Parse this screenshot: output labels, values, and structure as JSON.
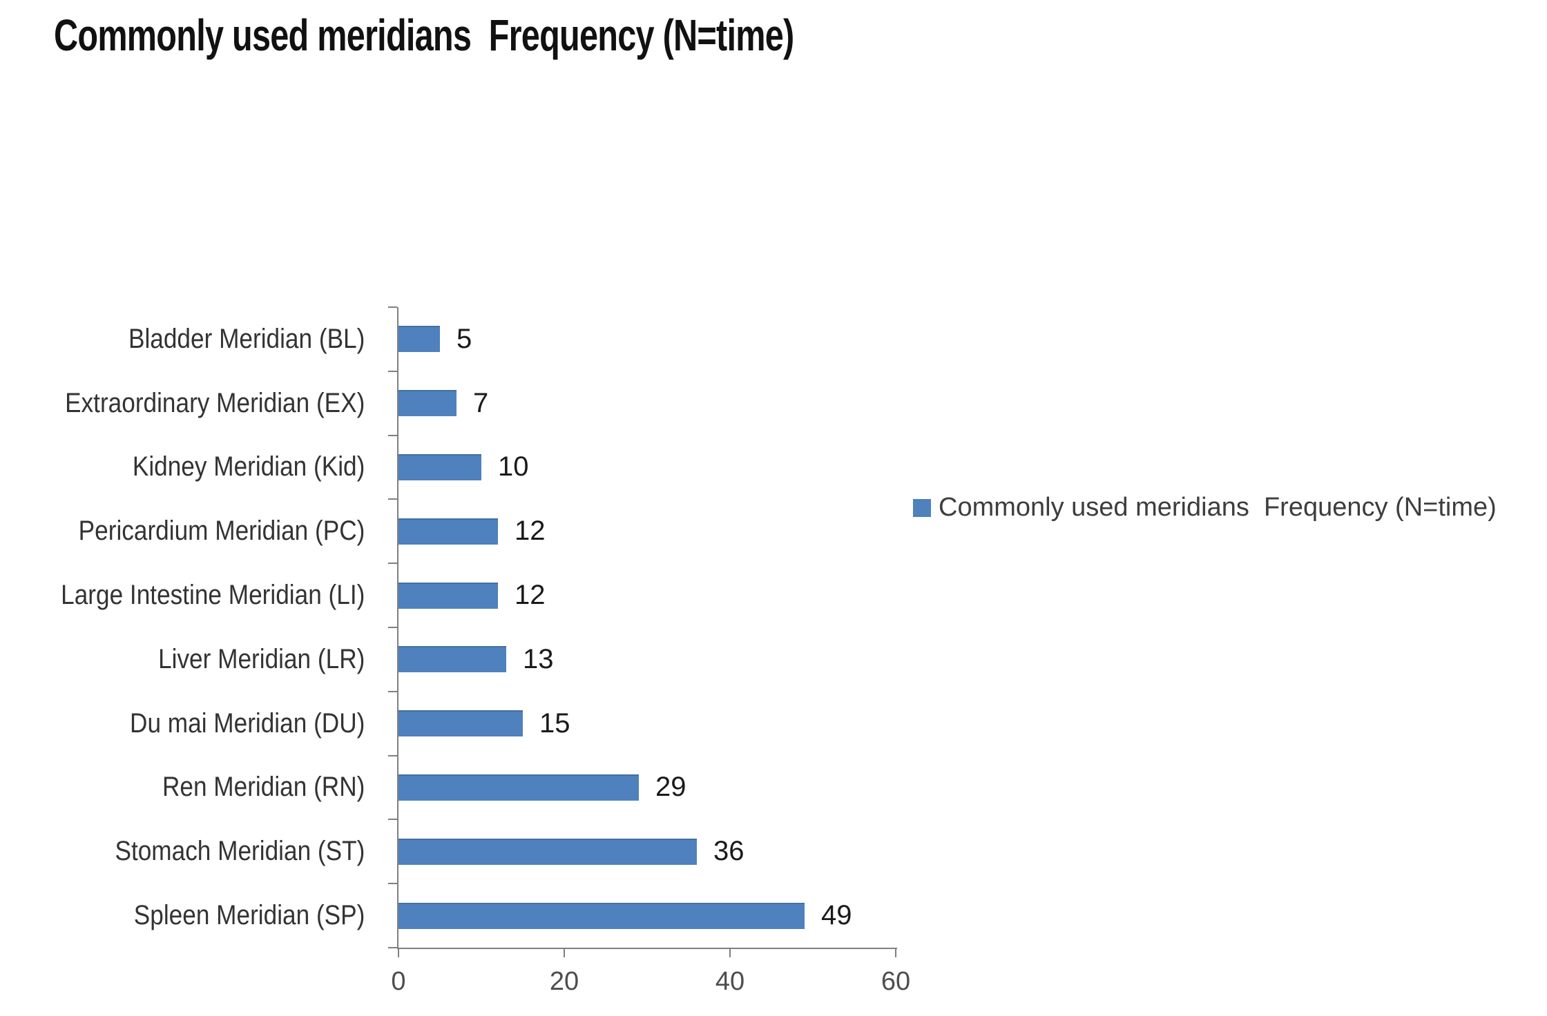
{
  "title": "Commonly used meridians  Frequency (N=time)",
  "legend": {
    "label": "Commonly used meridians  Frequency (N=time)",
    "swatch_color": "#4E81BD",
    "position": "right"
  },
  "colors": {
    "bar_fill": "#4E81BD",
    "axis_line": "#7F7F7F",
    "tick_label": "#4d4d4d",
    "category_label": "#333333",
    "value_label": "#1a1a1a",
    "title_text": "#111111",
    "background": "#ffffff"
  },
  "chart_data": {
    "type": "bar",
    "orientation": "horizontal",
    "title": "Commonly used meridians  Frequency (N=time)",
    "categories": [
      "Bladder Meridian (BL)",
      "Extraordinary Meridian (EX)",
      "Kidney Meridian (Kid)",
      "Pericardium Meridian (PC)",
      "Large Intestine Meridian (LI)",
      "Liver Meridian (LR)",
      "Du mai Meridian (DU)",
      "Ren Meridian (RN)",
      "Stomach Meridian (ST)",
      "Spleen Meridian (SP)"
    ],
    "values": [
      5,
      7,
      10,
      12,
      12,
      13,
      15,
      29,
      36,
      49
    ],
    "value_labels": [
      "5",
      "7",
      "10",
      "12",
      "12",
      "13",
      "15",
      "29",
      "36",
      "49"
    ],
    "xlabel": "",
    "ylabel": "",
    "xlim": [
      0,
      60
    ],
    "x_ticks": [
      0,
      20,
      40,
      60
    ],
    "grid": false,
    "data_labels_shown": true,
    "legend_position": "right"
  }
}
